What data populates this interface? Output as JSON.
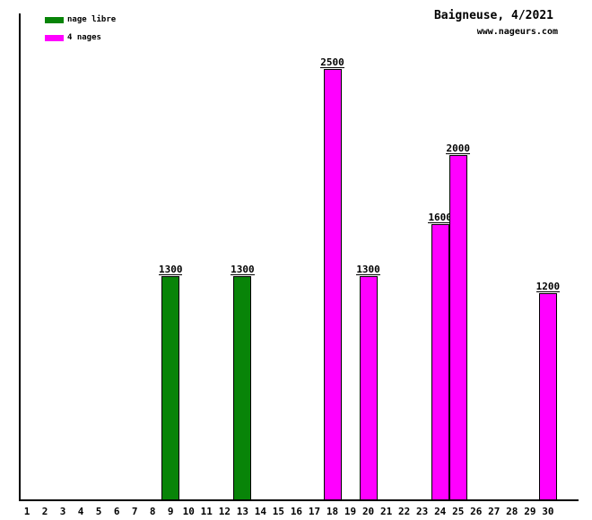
{
  "header": {
    "title": "Baigneuse, 4/2021",
    "website": "www.nageurs.com"
  },
  "legend": [
    {
      "label": "nage libre",
      "color": "#088408"
    },
    {
      "label": "4 nages",
      "color": "#FF00FF"
    }
  ],
  "chart_data": {
    "type": "bar",
    "title": "Baigneuse, 4/2021",
    "subtitle": "www.nageurs.com",
    "xlabel": "",
    "ylabel": "",
    "categories": [
      1,
      2,
      3,
      4,
      5,
      6,
      7,
      8,
      9,
      10,
      11,
      12,
      13,
      14,
      15,
      16,
      17,
      18,
      19,
      20,
      21,
      22,
      23,
      24,
      25,
      26,
      27,
      28,
      29,
      30
    ],
    "series": [
      {
        "name": "nage libre",
        "color": "#088408",
        "points": [
          {
            "x": 9,
            "y": 1300
          },
          {
            "x": 13,
            "y": 1300
          }
        ]
      },
      {
        "name": "4 nages",
        "color": "#FF00FF",
        "points": [
          {
            "x": 18,
            "y": 2500
          },
          {
            "x": 20,
            "y": 1300
          },
          {
            "x": 24,
            "y": 1600
          },
          {
            "x": 25,
            "y": 2000
          },
          {
            "x": 30,
            "y": 1200
          }
        ]
      }
    ],
    "ylim": [
      0,
      2600
    ],
    "grid": false,
    "value_labels": true,
    "legend_position": "top-left"
  }
}
